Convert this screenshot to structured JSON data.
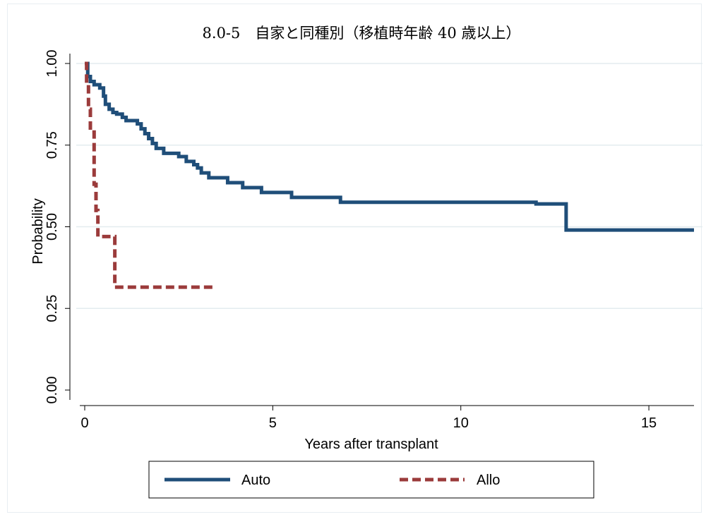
{
  "chart_data": {
    "type": "line",
    "title": "8.0-5　自家と同種別（移植時年齢 40 歳以上）",
    "xlabel": "Years after transplant",
    "ylabel": "Probability",
    "xlim": [
      0,
      16.2
    ],
    "ylim": [
      0,
      1
    ],
    "x_ticks": [
      0,
      5,
      10,
      15
    ],
    "x_tick_labels": [
      "0",
      "5",
      "10",
      "15"
    ],
    "y_ticks": [
      0,
      0.25,
      0.5,
      0.75,
      1
    ],
    "y_tick_labels": [
      "0.00",
      "0.25",
      "0.50",
      "0.75",
      "1.00"
    ],
    "grid": "horizontal",
    "legend": "bottom",
    "series": [
      {
        "name": "Auto",
        "color": "#1f4e79",
        "style": "solid",
        "x": [
          0,
          0.08,
          0.15,
          0.25,
          0.4,
          0.5,
          0.55,
          0.65,
          0.75,
          0.85,
          1.0,
          1.1,
          1.4,
          1.5,
          1.6,
          1.7,
          1.8,
          1.9,
          2.1,
          2.5,
          2.7,
          2.9,
          3.0,
          3.1,
          3.3,
          3.8,
          4.2,
          4.7,
          5.5,
          6.8,
          12.0,
          12.8,
          16.2
        ],
        "y": [
          1.0,
          0.96,
          0.945,
          0.935,
          0.925,
          0.9,
          0.875,
          0.86,
          0.85,
          0.845,
          0.835,
          0.825,
          0.815,
          0.8,
          0.785,
          0.77,
          0.755,
          0.74,
          0.725,
          0.715,
          0.7,
          0.69,
          0.68,
          0.665,
          0.65,
          0.635,
          0.62,
          0.605,
          0.59,
          0.575,
          0.57,
          0.49,
          0.49
        ]
      },
      {
        "name": "Allo",
        "color": "#9b3b3b",
        "style": "dashed",
        "x": [
          0,
          0.05,
          0.1,
          0.15,
          0.25,
          0.3,
          0.35,
          0.75,
          0.8,
          3.4
        ],
        "y": [
          1.0,
          0.94,
          0.86,
          0.79,
          0.63,
          0.55,
          0.47,
          0.47,
          0.315,
          0.315
        ]
      }
    ]
  }
}
